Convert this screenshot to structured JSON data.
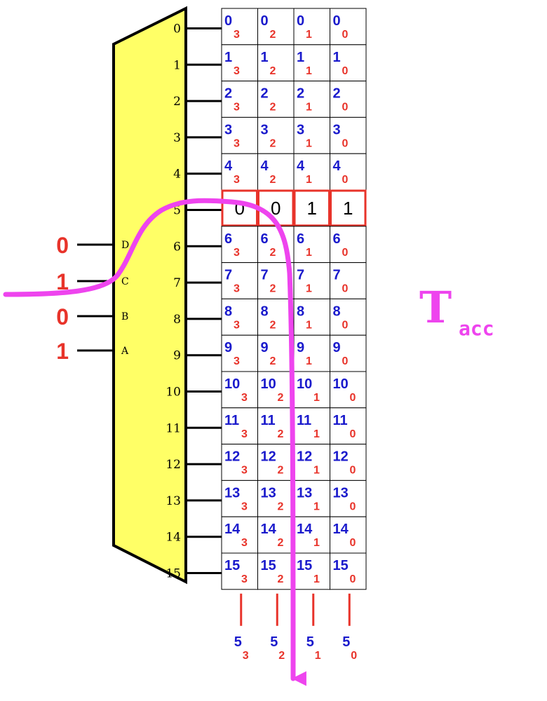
{
  "colors": {
    "decoder_fill": "#ffff66",
    "address_bits": "#e8332a",
    "word_index": "#1a1acc",
    "bit_index": "#e8332a",
    "highlight_border": "#e8332a",
    "signal_path": "#ee44ee"
  },
  "decoder": {
    "output_labels": [
      "0",
      "1",
      "2",
      "3",
      "4",
      "5",
      "6",
      "7",
      "8",
      "9",
      "10",
      "11",
      "12",
      "13",
      "14",
      "15"
    ],
    "inputs": [
      {
        "pin": "D",
        "value": "0"
      },
      {
        "pin": "C",
        "value": "1"
      },
      {
        "pin": "B",
        "value": "0"
      },
      {
        "pin": "A",
        "value": "1"
      }
    ]
  },
  "memory": {
    "bit_labels": [
      "3",
      "2",
      "1",
      "0"
    ],
    "selected_row": 5,
    "selected_row_values": [
      "0",
      "0",
      "1",
      "1"
    ]
  },
  "outputs": {
    "word": "5",
    "bits": [
      "3",
      "2",
      "1",
      "0"
    ]
  },
  "timing": {
    "symbol": "T",
    "subscript": "acc"
  }
}
